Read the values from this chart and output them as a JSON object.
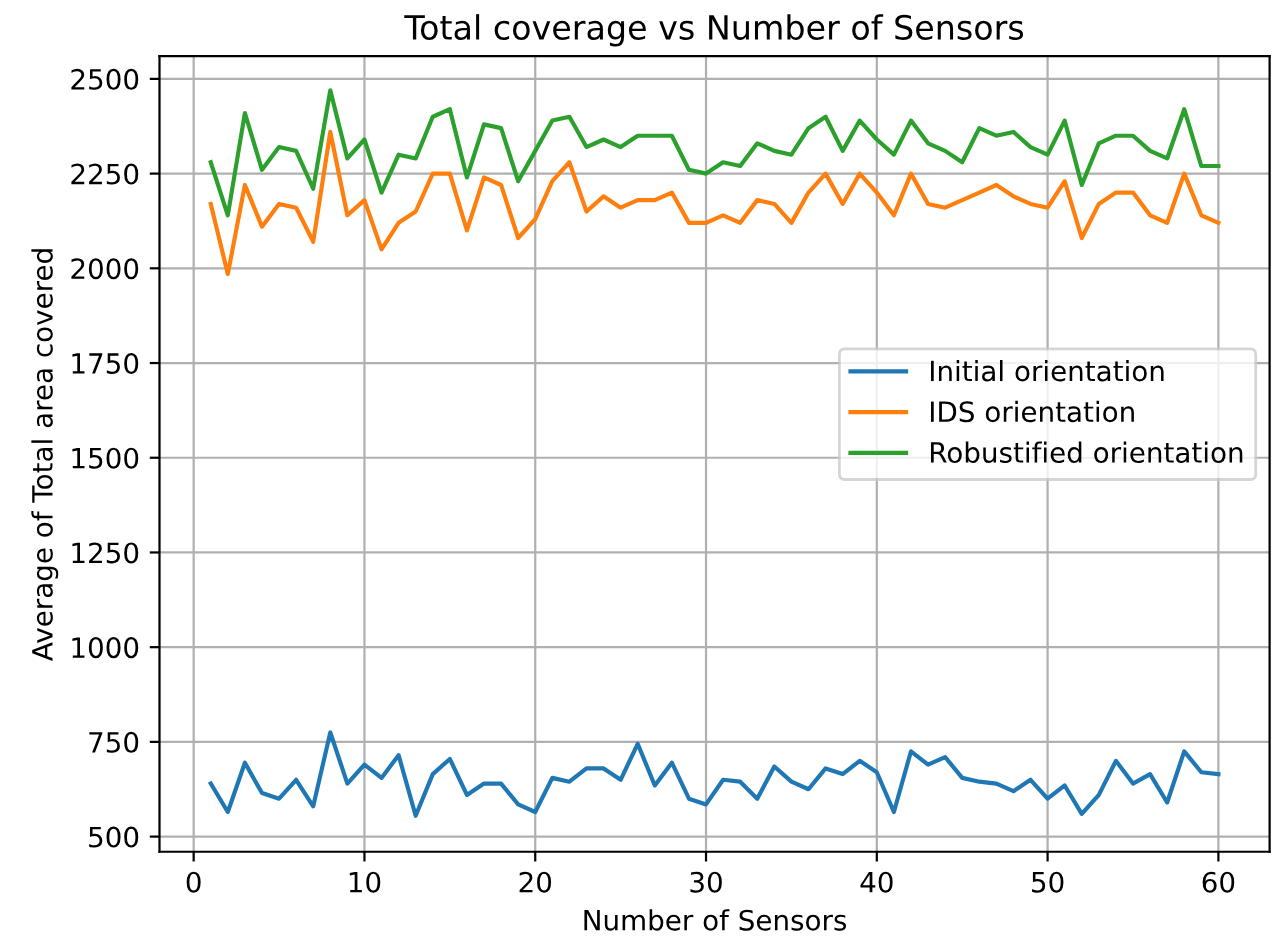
{
  "chart_data": {
    "type": "line",
    "title": "Total coverage vs Number of Sensors",
    "xlabel": "Number of Sensors",
    "ylabel": "Average of Total area covered",
    "x": [
      1,
      2,
      3,
      4,
      5,
      6,
      7,
      8,
      9,
      10,
      11,
      12,
      13,
      14,
      15,
      16,
      17,
      18,
      19,
      20,
      21,
      22,
      23,
      24,
      25,
      26,
      27,
      28,
      29,
      30,
      31,
      32,
      33,
      34,
      35,
      36,
      37,
      38,
      39,
      40,
      41,
      42,
      43,
      44,
      45,
      46,
      47,
      48,
      49,
      50,
      51,
      52,
      53,
      54,
      55,
      56,
      57,
      58,
      59,
      60
    ],
    "series": [
      {
        "name": "Initial orientation",
        "color": "#1f77b4",
        "values": [
          640,
          565,
          695,
          615,
          600,
          650,
          580,
          775,
          640,
          690,
          655,
          715,
          555,
          665,
          705,
          610,
          640,
          640,
          585,
          565,
          655,
          645,
          680,
          680,
          650,
          745,
          635,
          695,
          600,
          585,
          650,
          645,
          600,
          685,
          645,
          625,
          680,
          665,
          700,
          670,
          565,
          725,
          690,
          710,
          655,
          645,
          640,
          620,
          650,
          600,
          635,
          560,
          610,
          700,
          640,
          665,
          590,
          725,
          670,
          665
        ]
      },
      {
        "name": "IDS orientation",
        "color": "#ff7f0e",
        "values": [
          2170,
          1985,
          2220,
          2110,
          2170,
          2160,
          2070,
          2360,
          2140,
          2180,
          2050,
          2120,
          2150,
          2250,
          2250,
          2100,
          2240,
          2220,
          2080,
          2130,
          2230,
          2280,
          2150,
          2190,
          2160,
          2180,
          2180,
          2200,
          2120,
          2120,
          2140,
          2120,
          2180,
          2170,
          2120,
          2200,
          2250,
          2170,
          2250,
          2200,
          2140,
          2250,
          2170,
          2160,
          2180,
          2200,
          2220,
          2190,
          2170,
          2160,
          2230,
          2080,
          2170,
          2200,
          2200,
          2140,
          2120,
          2250,
          2140,
          2120
        ]
      },
      {
        "name": "Robustified orientation",
        "color": "#2ca02c",
        "values": [
          2280,
          2140,
          2410,
          2260,
          2320,
          2310,
          2210,
          2470,
          2290,
          2340,
          2200,
          2300,
          2290,
          2400,
          2420,
          2240,
          2380,
          2370,
          2230,
          2310,
          2390,
          2400,
          2320,
          2340,
          2320,
          2350,
          2350,
          2350,
          2260,
          2250,
          2280,
          2270,
          2330,
          2310,
          2300,
          2370,
          2400,
          2310,
          2390,
          2340,
          2300,
          2390,
          2330,
          2310,
          2280,
          2370,
          2350,
          2360,
          2320,
          2300,
          2390,
          2220,
          2330,
          2350,
          2350,
          2310,
          2290,
          2420,
          2270,
          2270
        ]
      }
    ],
    "xlim": [
      -2,
      63
    ],
    "ylim": [
      460,
      2560
    ],
    "xticks": [
      0,
      10,
      20,
      30,
      40,
      50,
      60
    ],
    "yticks": [
      500,
      750,
      1000,
      1250,
      1500,
      1750,
      2000,
      2250,
      2500
    ],
    "grid": true,
    "legend": "right",
    "marker": "none",
    "line_style": "solid"
  }
}
